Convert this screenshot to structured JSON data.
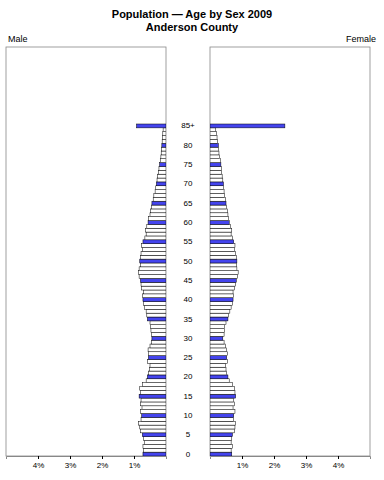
{
  "chart_data": {
    "type": "bar",
    "orientation": "horizontal",
    "title": "Population — Age by Sex 2009",
    "subtitle": "Anderson County",
    "categories": [
      "0",
      null,
      null,
      null,
      null,
      "5",
      null,
      null,
      null,
      null,
      "10",
      null,
      null,
      null,
      null,
      "15",
      null,
      null,
      null,
      null,
      "20",
      null,
      null,
      null,
      null,
      "25",
      null,
      null,
      null,
      null,
      "30",
      null,
      null,
      null,
      null,
      "35",
      null,
      null,
      null,
      null,
      "40",
      null,
      null,
      null,
      null,
      "45",
      null,
      null,
      null,
      null,
      "50",
      null,
      null,
      null,
      null,
      "55",
      null,
      null,
      null,
      null,
      "60",
      null,
      null,
      null,
      null,
      "65",
      null,
      null,
      null,
      null,
      "70",
      null,
      null,
      null,
      null,
      "75",
      null,
      null,
      null,
      null,
      "80",
      null,
      null,
      null,
      null,
      "85+"
    ],
    "series": [
      {
        "name": "Male",
        "color": "#4444ee",
        "values": [
          0.72,
          0.7,
          0.72,
          0.68,
          0.7,
          0.74,
          0.8,
          0.82,
          0.86,
          0.78,
          0.76,
          0.8,
          0.75,
          0.8,
          0.78,
          0.84,
          0.8,
          0.82,
          0.74,
          0.62,
          0.58,
          0.54,
          0.52,
          0.5,
          0.58,
          0.55,
          0.55,
          0.56,
          0.5,
          0.45,
          0.44,
          0.46,
          0.47,
          0.48,
          0.5,
          0.58,
          0.6,
          0.62,
          0.68,
          0.7,
          0.72,
          0.74,
          0.7,
          0.76,
          0.78,
          0.8,
          0.84,
          0.86,
          0.84,
          0.8,
          0.82,
          0.8,
          0.78,
          0.74,
          0.76,
          0.72,
          0.66,
          0.62,
          0.64,
          0.6,
          0.56,
          0.54,
          0.5,
          0.48,
          0.46,
          0.44,
          0.4,
          0.38,
          0.34,
          0.32,
          0.3,
          0.28,
          0.26,
          0.24,
          0.22,
          0.2,
          0.18,
          0.16,
          0.15,
          0.14,
          0.13,
          0.12,
          0.11,
          0.1,
          0.09,
          0.92
        ]
      },
      {
        "name": "Female",
        "color": "#4444ee",
        "values": [
          0.68,
          0.66,
          0.7,
          0.66,
          0.68,
          0.7,
          0.76,
          0.78,
          0.8,
          0.74,
          0.74,
          0.78,
          0.72,
          0.76,
          0.74,
          0.8,
          0.78,
          0.76,
          0.7,
          0.6,
          0.56,
          0.52,
          0.5,
          0.48,
          0.54,
          0.52,
          0.54,
          0.52,
          0.48,
          0.44,
          0.4,
          0.44,
          0.46,
          0.46,
          0.5,
          0.56,
          0.58,
          0.62,
          0.66,
          0.7,
          0.72,
          0.74,
          0.72,
          0.76,
          0.8,
          0.82,
          0.86,
          0.88,
          0.84,
          0.82,
          0.84,
          0.82,
          0.8,
          0.76,
          0.78,
          0.74,
          0.7,
          0.66,
          0.68,
          0.64,
          0.6,
          0.58,
          0.56,
          0.54,
          0.52,
          0.5,
          0.48,
          0.46,
          0.44,
          0.42,
          0.42,
          0.4,
          0.38,
          0.36,
          0.36,
          0.34,
          0.32,
          0.3,
          0.28,
          0.27,
          0.26,
          0.24,
          0.22,
          0.2,
          0.18,
          2.34
        ]
      }
    ],
    "xlim": [
      0,
      5
    ],
    "xticks": [
      {
        "value": 1,
        "label": "1%"
      },
      {
        "value": 2,
        "label": "2%"
      },
      {
        "value": 3,
        "label": "3%"
      },
      {
        "value": 4,
        "label": "4%"
      }
    ]
  }
}
